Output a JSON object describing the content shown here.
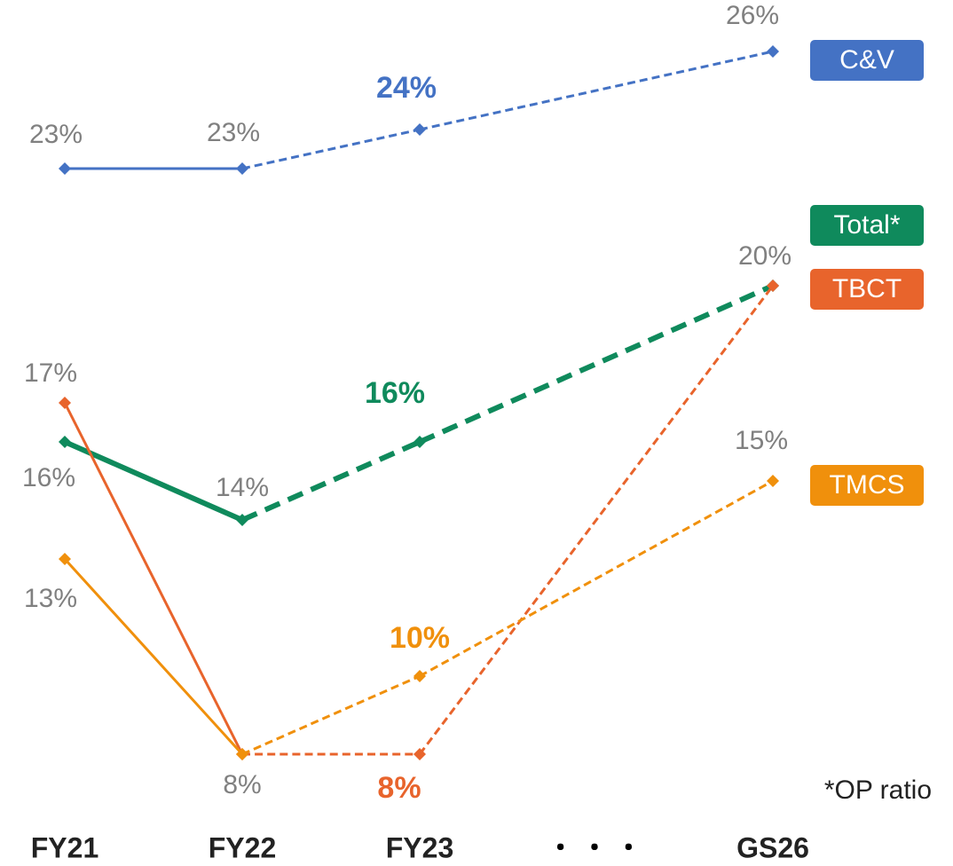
{
  "chart_data": {
    "type": "line",
    "categories": [
      "FY21",
      "FY22",
      "FY23",
      "GS26"
    ],
    "axis_break": "・ ・ ・",
    "note": "*OP ratio",
    "dashed_from_index": 1,
    "series": [
      {
        "name": "C&V",
        "color": "#4472c4",
        "line_width": 3,
        "values": [
          23,
          23,
          24,
          26
        ],
        "value_labels": [
          "23%",
          "23%",
          "24%",
          "26%"
        ]
      },
      {
        "name": "Total*",
        "color": "#0f8a5c",
        "line_width": 6,
        "values": [
          16,
          14,
          16,
          20
        ],
        "value_labels": [
          "16%",
          "14%",
          "16%",
          "20%"
        ]
      },
      {
        "name": "TBCT",
        "color": "#e8642c",
        "line_width": 3,
        "values": [
          17,
          8,
          8,
          20
        ],
        "value_labels": [
          "17%",
          "8%",
          "8%",
          null
        ]
      },
      {
        "name": "TMCS",
        "color": "#f0900c",
        "line_width": 3,
        "values": [
          13,
          8,
          10,
          15
        ],
        "value_labels": [
          "13%",
          null,
          "10%",
          "15%"
        ]
      }
    ]
  }
}
